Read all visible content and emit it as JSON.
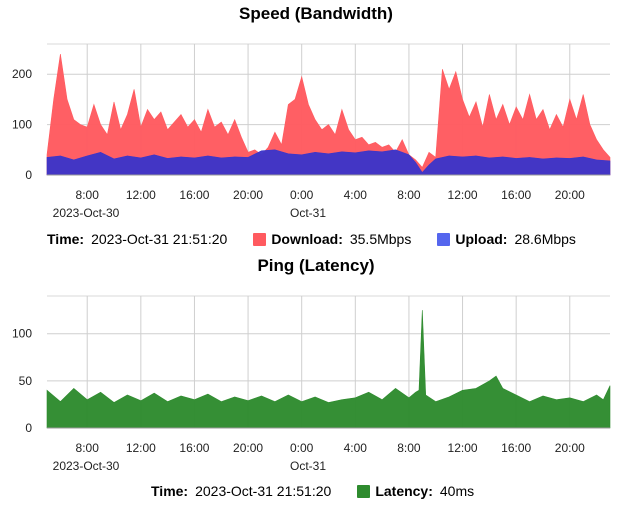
{
  "chart_data": [
    {
      "type": "area",
      "title": "Speed (Bandwidth)",
      "x_range": [
        "2023-10-30 05:00",
        "2023-10-31 23:00"
      ],
      "ylim": [
        0,
        260
      ],
      "yticks": [
        0,
        100,
        200
      ],
      "x_tick_labels": [
        "8:00",
        "12:00",
        "16:00",
        "20:00",
        "0:00",
        "4:00",
        "8:00",
        "12:00",
        "16:00",
        "20:00"
      ],
      "x_sub_labels": [
        "2023-Oct-30",
        "Oct-31"
      ],
      "grid": true,
      "series": [
        {
          "name": "Download",
          "color": "#ff5a5f",
          "points": [
            [
              "2023-10-30 05:00",
              40
            ],
            [
              "2023-10-30 05:30",
              150
            ],
            [
              "2023-10-30 06:00",
              240
            ],
            [
              "2023-10-30 06:30",
              150
            ],
            [
              "2023-10-30 07:00",
              110
            ],
            [
              "2023-10-30 07:30",
              100
            ],
            [
              "2023-10-30 08:00",
              95
            ],
            [
              "2023-10-30 08:30",
              140
            ],
            [
              "2023-10-30 09:00",
              100
            ],
            [
              "2023-10-30 09:30",
              80
            ],
            [
              "2023-10-30 10:00",
              145
            ],
            [
              "2023-10-30 10:30",
              90
            ],
            [
              "2023-10-30 11:00",
              120
            ],
            [
              "2023-10-30 11:30",
              170
            ],
            [
              "2023-10-30 12:00",
              95
            ],
            [
              "2023-10-30 12:30",
              130
            ],
            [
              "2023-10-30 13:00",
              110
            ],
            [
              "2023-10-30 13:30",
              125
            ],
            [
              "2023-10-30 14:00",
              90
            ],
            [
              "2023-10-30 14:30",
              105
            ],
            [
              "2023-10-30 15:00",
              120
            ],
            [
              "2023-10-30 15:30",
              95
            ],
            [
              "2023-10-30 16:00",
              110
            ],
            [
              "2023-10-30 16:30",
              85
            ],
            [
              "2023-10-30 17:00",
              130
            ],
            [
              "2023-10-30 17:30",
              95
            ],
            [
              "2023-10-30 18:00",
              105
            ],
            [
              "2023-10-30 18:30",
              80
            ],
            [
              "2023-10-30 19:00",
              110
            ],
            [
              "2023-10-30 19:30",
              75
            ],
            [
              "2023-10-30 20:00",
              45
            ],
            [
              "2023-10-30 20:30",
              50
            ],
            [
              "2023-10-30 21:00",
              40
            ],
            [
              "2023-10-30 21:30",
              55
            ],
            [
              "2023-10-30 22:00",
              85
            ],
            [
              "2023-10-30 22:30",
              60
            ],
            [
              "2023-10-30 23:00",
              140
            ],
            [
              "2023-10-30 23:30",
              150
            ],
            [
              "2023-10-31 00:00",
              195
            ],
            [
              "2023-10-31 00:30",
              140
            ],
            [
              "2023-10-31 01:00",
              110
            ],
            [
              "2023-10-31 01:30",
              90
            ],
            [
              "2023-10-31 02:00",
              100
            ],
            [
              "2023-10-31 02:30",
              80
            ],
            [
              "2023-10-31 03:00",
              130
            ],
            [
              "2023-10-31 03:30",
              90
            ],
            [
              "2023-10-31 04:00",
              70
            ],
            [
              "2023-10-31 04:30",
              75
            ],
            [
              "2023-10-31 05:00",
              60
            ],
            [
              "2023-10-31 05:30",
              65
            ],
            [
              "2023-10-31 06:00",
              55
            ],
            [
              "2023-10-31 06:30",
              60
            ],
            [
              "2023-10-31 07:00",
              45
            ],
            [
              "2023-10-31 07:30",
              70
            ],
            [
              "2023-10-31 08:00",
              40
            ],
            [
              "2023-10-31 08:30",
              30
            ],
            [
              "2023-10-31 09:00",
              15
            ],
            [
              "2023-10-31 09:30",
              45
            ],
            [
              "2023-10-31 10:00",
              35
            ],
            [
              "2023-10-31 10:30",
              210
            ],
            [
              "2023-10-31 11:00",
              170
            ],
            [
              "2023-10-31 11:30",
              205
            ],
            [
              "2023-10-31 12:00",
              150
            ],
            [
              "2023-10-31 12:30",
              115
            ],
            [
              "2023-10-31 13:00",
              145
            ],
            [
              "2023-10-31 13:30",
              95
            ],
            [
              "2023-10-31 14:00",
              160
            ],
            [
              "2023-10-31 14:30",
              110
            ],
            [
              "2023-10-31 15:00",
              140
            ],
            [
              "2023-10-31 15:30",
              100
            ],
            [
              "2023-10-31 16:00",
              135
            ],
            [
              "2023-10-31 16:30",
              110
            ],
            [
              "2023-10-31 17:00",
              160
            ],
            [
              "2023-10-31 17:30",
              110
            ],
            [
              "2023-10-31 18:00",
              130
            ],
            [
              "2023-10-31 18:30",
              90
            ],
            [
              "2023-10-31 19:00",
              120
            ],
            [
              "2023-10-31 19:30",
              95
            ],
            [
              "2023-10-31 20:00",
              150
            ],
            [
              "2023-10-31 20:30",
              110
            ],
            [
              "2023-10-31 21:00",
              160
            ],
            [
              "2023-10-31 21:30",
              100
            ],
            [
              "2023-10-31 22:00",
              70
            ],
            [
              "2023-10-31 22:30",
              50
            ],
            [
              "2023-10-31 23:00",
              35
            ]
          ]
        },
        {
          "name": "Upload",
          "color": "#3d35c8",
          "points": [
            [
              "2023-10-30 05:00",
              35
            ],
            [
              "2023-10-30 06:00",
              38
            ],
            [
              "2023-10-30 07:00",
              30
            ],
            [
              "2023-10-30 08:00",
              38
            ],
            [
              "2023-10-30 09:00",
              45
            ],
            [
              "2023-10-30 10:00",
              32
            ],
            [
              "2023-10-30 11:00",
              38
            ],
            [
              "2023-10-30 12:00",
              34
            ],
            [
              "2023-10-30 13:00",
              40
            ],
            [
              "2023-10-30 14:00",
              33
            ],
            [
              "2023-10-30 15:00",
              36
            ],
            [
              "2023-10-30 16:00",
              34
            ],
            [
              "2023-10-30 17:00",
              38
            ],
            [
              "2023-10-30 18:00",
              34
            ],
            [
              "2023-10-30 19:00",
              36
            ],
            [
              "2023-10-30 20:00",
              35
            ],
            [
              "2023-10-30 21:00",
              48
            ],
            [
              "2023-10-30 22:00",
              50
            ],
            [
              "2023-10-30 23:00",
              42
            ],
            [
              "2023-10-31 00:00",
              40
            ],
            [
              "2023-10-31 01:00",
              45
            ],
            [
              "2023-10-31 02:00",
              42
            ],
            [
              "2023-10-31 03:00",
              46
            ],
            [
              "2023-10-31 04:00",
              44
            ],
            [
              "2023-10-31 05:00",
              48
            ],
            [
              "2023-10-31 06:00",
              46
            ],
            [
              "2023-10-31 07:00",
              50
            ],
            [
              "2023-10-31 08:00",
              40
            ],
            [
              "2023-10-31 08:30",
              25
            ],
            [
              "2023-10-31 09:00",
              5
            ],
            [
              "2023-10-31 09:30",
              20
            ],
            [
              "2023-10-31 10:00",
              32
            ],
            [
              "2023-10-31 11:00",
              38
            ],
            [
              "2023-10-31 12:00",
              36
            ],
            [
              "2023-10-31 13:00",
              38
            ],
            [
              "2023-10-31 14:00",
              34
            ],
            [
              "2023-10-31 15:00",
              36
            ],
            [
              "2023-10-31 16:00",
              33
            ],
            [
              "2023-10-31 17:00",
              35
            ],
            [
              "2023-10-31 18:00",
              32
            ],
            [
              "2023-10-31 19:00",
              34
            ],
            [
              "2023-10-31 20:00",
              33
            ],
            [
              "2023-10-31 21:00",
              36
            ],
            [
              "2023-10-31 22:00",
              30
            ],
            [
              "2023-10-31 23:00",
              28
            ]
          ]
        }
      ],
      "readout": {
        "time_label": "Time:",
        "time_value": "2023-Oct-31 21:51:20",
        "download_label": "Download:",
        "download_value": "35.5Mbps",
        "upload_label": "Upload:",
        "upload_value": "28.6Mbps",
        "upload_swatch_color": "#5566ee"
      }
    },
    {
      "type": "area",
      "title": "Ping (Latency)",
      "x_range": [
        "2023-10-30 05:00",
        "2023-10-31 23:00"
      ],
      "ylim": [
        0,
        140
      ],
      "yticks": [
        0,
        50,
        100
      ],
      "x_tick_labels": [
        "8:00",
        "12:00",
        "16:00",
        "20:00",
        "0:00",
        "4:00",
        "8:00",
        "12:00",
        "16:00",
        "20:00"
      ],
      "x_sub_labels": [
        "2023-Oct-30",
        "Oct-31"
      ],
      "grid": true,
      "series": [
        {
          "name": "Latency",
          "color": "#2e8b2e",
          "points": [
            [
              "2023-10-30 05:00",
              40
            ],
            [
              "2023-10-30 06:00",
              28
            ],
            [
              "2023-10-30 07:00",
              42
            ],
            [
              "2023-10-30 08:00",
              30
            ],
            [
              "2023-10-30 09:00",
              38
            ],
            [
              "2023-10-30 10:00",
              27
            ],
            [
              "2023-10-30 11:00",
              35
            ],
            [
              "2023-10-30 12:00",
              29
            ],
            [
              "2023-10-30 13:00",
              37
            ],
            [
              "2023-10-30 14:00",
              28
            ],
            [
              "2023-10-30 15:00",
              34
            ],
            [
              "2023-10-30 16:00",
              30
            ],
            [
              "2023-10-30 17:00",
              36
            ],
            [
              "2023-10-30 18:00",
              28
            ],
            [
              "2023-10-30 19:00",
              33
            ],
            [
              "2023-10-30 20:00",
              29
            ],
            [
              "2023-10-30 21:00",
              34
            ],
            [
              "2023-10-30 22:00",
              28
            ],
            [
              "2023-10-30 23:00",
              35
            ],
            [
              "2023-10-31 00:00",
              28
            ],
            [
              "2023-10-31 01:00",
              33
            ],
            [
              "2023-10-31 02:00",
              27
            ],
            [
              "2023-10-31 03:00",
              30
            ],
            [
              "2023-10-31 04:00",
              32
            ],
            [
              "2023-10-31 05:00",
              38
            ],
            [
              "2023-10-31 06:00",
              30
            ],
            [
              "2023-10-31 07:00",
              42
            ],
            [
              "2023-10-31 08:00",
              32
            ],
            [
              "2023-10-31 08:30",
              38
            ],
            [
              "2023-10-31 08:45",
              40
            ],
            [
              "2023-10-31 09:00",
              125
            ],
            [
              "2023-10-31 09:15",
              35
            ],
            [
              "2023-10-31 10:00",
              28
            ],
            [
              "2023-10-31 11:00",
              33
            ],
            [
              "2023-10-31 12:00",
              40
            ],
            [
              "2023-10-31 13:00",
              42
            ],
            [
              "2023-10-31 14:00",
              50
            ],
            [
              "2023-10-31 14:30",
              55
            ],
            [
              "2023-10-31 15:00",
              42
            ],
            [
              "2023-10-31 16:00",
              35
            ],
            [
              "2023-10-31 17:00",
              28
            ],
            [
              "2023-10-31 18:00",
              34
            ],
            [
              "2023-10-31 19:00",
              30
            ],
            [
              "2023-10-31 20:00",
              32
            ],
            [
              "2023-10-31 21:00",
              28
            ],
            [
              "2023-10-31 22:00",
              35
            ],
            [
              "2023-10-31 22:30",
              30
            ],
            [
              "2023-10-31 23:00",
              45
            ]
          ]
        }
      ],
      "readout": {
        "time_label": "Time:",
        "time_value": "2023-Oct-31 21:51:20",
        "latency_label": "Latency:",
        "latency_value": "40ms"
      }
    }
  ]
}
